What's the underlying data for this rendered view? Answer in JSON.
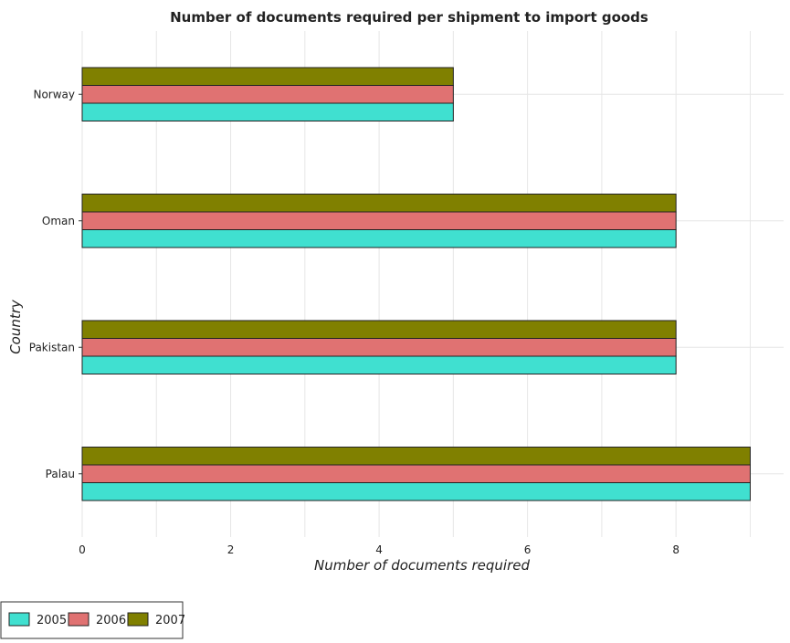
{
  "chart_data": {
    "type": "bar",
    "orientation": "horizontal",
    "title": "Number of documents required per shipment to import goods",
    "xlabel": "Number of documents required",
    "ylabel": "Country",
    "categories": [
      "Norway",
      "Oman",
      "Pakistan",
      "Palau"
    ],
    "series": [
      {
        "name": "2005",
        "color": "#40e0d0",
        "values": [
          5,
          8,
          8,
          9
        ]
      },
      {
        "name": "2006",
        "color": "#e07272",
        "values": [
          5,
          8,
          8,
          9
        ]
      },
      {
        "name": "2007",
        "color": "#808000",
        "values": [
          5,
          8,
          8,
          9
        ]
      }
    ],
    "xlim": [
      0,
      9.45
    ],
    "xticks": [
      0,
      2,
      4,
      6,
      8
    ],
    "xtick_labels": [
      "0",
      "2",
      "4",
      "6",
      "8"
    ],
    "grid": true,
    "legend_position": "bottom-left"
  }
}
